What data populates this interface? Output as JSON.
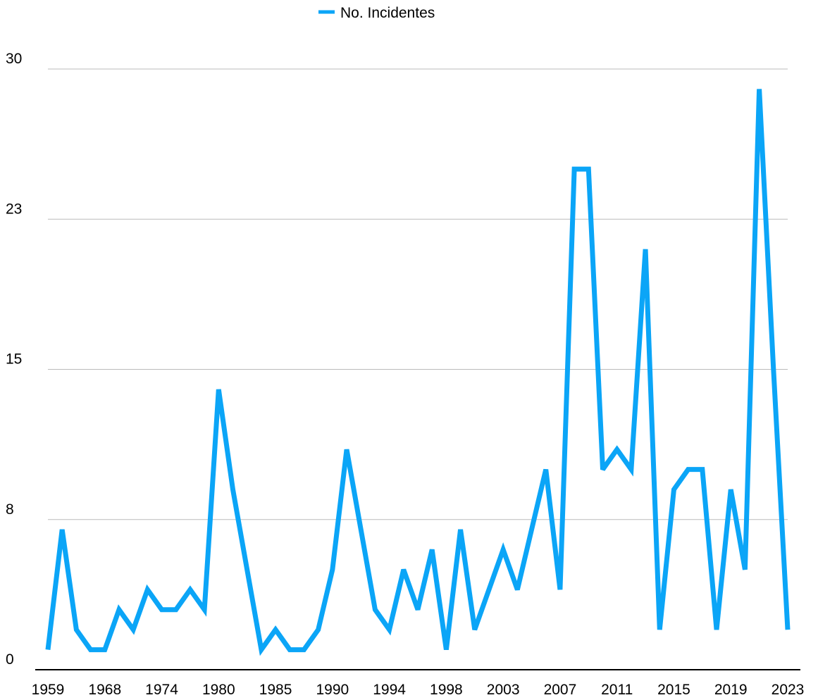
{
  "chart_data": {
    "type": "line",
    "categories": [
      "1959",
      null,
      null,
      null,
      "1968",
      null,
      null,
      null,
      "1974",
      null,
      null,
      null,
      "1980",
      null,
      null,
      null,
      "1985",
      null,
      null,
      null,
      "1990",
      null,
      null,
      null,
      "1994",
      null,
      null,
      null,
      "1998",
      null,
      null,
      null,
      "2003",
      null,
      null,
      null,
      "2007",
      null,
      null,
      null,
      "2011",
      null,
      null,
      null,
      "2015",
      null,
      null,
      null,
      "2019",
      null,
      null,
      null,
      "2023"
    ],
    "series": [
      {
        "name": "No. Incidentes",
        "color": "#0ba5f7",
        "values": [
          1,
          7,
          2,
          1,
          1,
          3,
          2,
          4,
          3,
          3,
          4,
          3,
          14,
          9,
          5,
          1,
          2,
          1,
          1,
          2,
          5,
          11,
          7,
          3,
          2,
          5,
          3,
          6,
          1,
          7,
          2,
          4,
          6,
          4,
          7,
          10,
          4,
          25,
          25,
          10,
          11,
          10,
          21,
          2,
          9,
          10,
          10,
          2,
          9,
          5,
          29,
          15,
          2
        ]
      }
    ],
    "ylim": [
      0,
      30
    ],
    "yticks": [
      0,
      {
        "value": 7.5,
        "label": "8"
      },
      15,
      {
        "value": 22.5,
        "label": "23"
      },
      30
    ],
    "grid": true,
    "legend": "top"
  }
}
